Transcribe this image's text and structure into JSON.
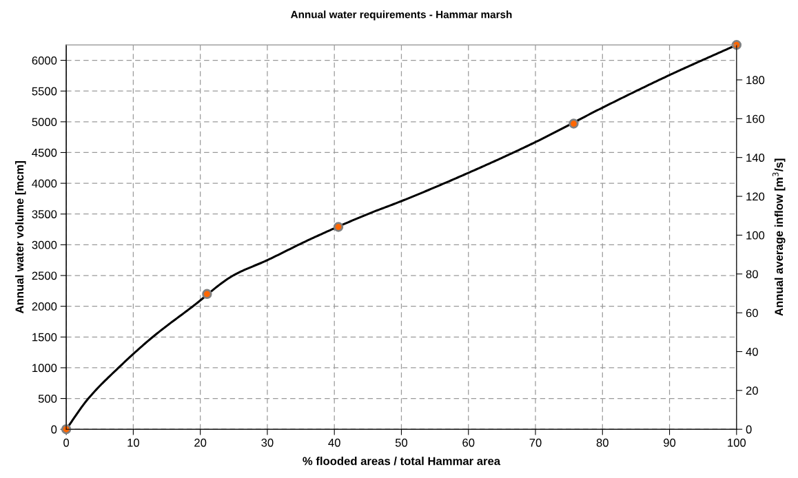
{
  "chart_data": {
    "type": "line",
    "title": "Annual water requirements - Hammar marsh",
    "xlabel": "% flooded areas / total Hammar area",
    "ylabel": "Annual water volume [mcm]",
    "y2label": "Annual average inflow [m$^{3}$/s]",
    "series": [
      {
        "color": "#000000",
        "marker": "none",
        "x": [
          0,
          3.3,
          7.8,
          12.9,
          18.9,
          24.9,
          30,
          36,
          45,
          50,
          60,
          70,
          80,
          90,
          100
        ],
        "values": [
          0,
          500,
          1000,
          1500,
          2000,
          2500,
          2750,
          3070,
          3500,
          3710,
          4170,
          4670,
          5230,
          5760,
          6250
        ]
      },
      {
        "type": "scatter",
        "color": "#ff6600",
        "marker": "circle",
        "x": [
          0,
          21,
          40.6,
          75.7,
          100
        ],
        "values": [
          0,
          2200,
          3290,
          4970,
          6250
        ]
      }
    ],
    "line_style": "solid",
    "xlim": [
      0,
      100
    ],
    "xticks": [
      0,
      10,
      20,
      30,
      40,
      50,
      60,
      70,
      80,
      90,
      100
    ],
    "ylim": [
      0,
      6250
    ],
    "yticks": [
      0,
      500,
      1000,
      1500,
      2000,
      2500,
      3000,
      3500,
      4000,
      4500,
      5000,
      5500,
      6000
    ],
    "y2lim": [
      0,
      198
    ],
    "y2ticks": [
      0,
      20,
      40,
      60,
      80,
      100,
      120,
      140,
      160,
      180
    ],
    "grid": true,
    "legend": false
  }
}
